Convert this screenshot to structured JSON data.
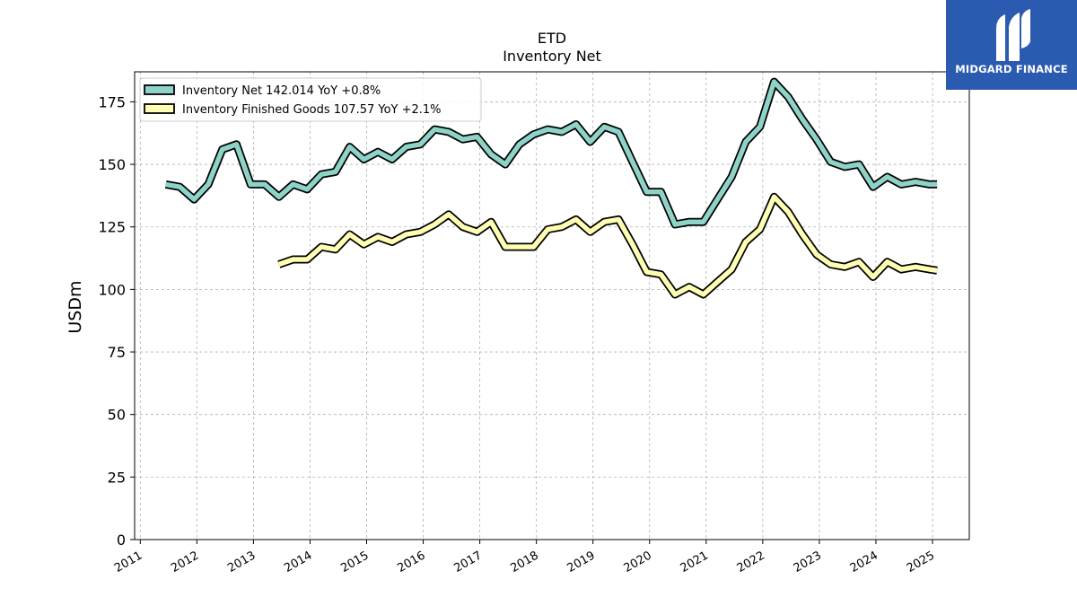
{
  "chart_data": {
    "type": "line",
    "title": "ETD",
    "subtitle": "Inventory Net",
    "ylabel": "USDm",
    "ylim": [
      0,
      187
    ],
    "yticks": [
      0,
      25,
      50,
      75,
      100,
      125,
      150,
      175
    ],
    "xlim": [
      2010.9,
      2025.65
    ],
    "xticks": [
      2011,
      2012,
      2013,
      2014,
      2015,
      2016,
      2017,
      2018,
      2019,
      2020,
      2021,
      2022,
      2023,
      2024,
      2025
    ],
    "xtick_labels": [
      "2011",
      "2012",
      "2013",
      "2014",
      "2015",
      "2016",
      "2017",
      "2018",
      "2019",
      "2020",
      "2021",
      "2022",
      "2023",
      "2024",
      "2025"
    ],
    "grid": true,
    "legend_position": "top-left",
    "series": [
      {
        "name": "Inventory Net  142.014 YoY +0.8%",
        "color": "#8dd3c7",
        "x": [
          2011.45,
          2011.7,
          2011.95,
          2012.2,
          2012.45,
          2012.7,
          2012.95,
          2013.2,
          2013.45,
          2013.7,
          2013.95,
          2014.2,
          2014.45,
          2014.7,
          2014.95,
          2015.2,
          2015.45,
          2015.7,
          2015.95,
          2016.2,
          2016.45,
          2016.7,
          2016.95,
          2017.2,
          2017.45,
          2017.7,
          2017.95,
          2018.2,
          2018.45,
          2018.7,
          2018.95,
          2019.2,
          2019.45,
          2019.7,
          2019.95,
          2020.2,
          2020.45,
          2020.7,
          2020.95,
          2021.2,
          2021.45,
          2021.7,
          2021.95,
          2022.2,
          2022.45,
          2022.7,
          2022.95,
          2023.2,
          2023.45,
          2023.7,
          2023.95,
          2024.2,
          2024.45,
          2024.7,
          2024.95,
          2025.08
        ],
        "values": [
          142,
          141,
          136,
          142,
          156,
          158,
          142,
          142,
          137,
          142,
          140,
          146,
          147,
          157,
          152,
          155,
          152,
          157,
          158,
          164,
          163,
          160,
          161,
          154,
          150,
          158,
          162,
          164,
          163,
          166,
          159,
          165,
          163,
          151,
          139,
          139,
          126,
          127,
          127,
          136,
          145,
          159,
          165,
          183,
          177,
          168,
          160,
          151,
          149,
          150,
          141,
          145,
          142,
          143,
          142,
          142.014
        ]
      },
      {
        "name": "Inventory Finished Goods  107.57 YoY +2.1%",
        "color": "#ffffb3",
        "x": [
          2013.45,
          2013.7,
          2013.95,
          2014.2,
          2014.45,
          2014.7,
          2014.95,
          2015.2,
          2015.45,
          2015.7,
          2015.95,
          2016.2,
          2016.45,
          2016.7,
          2016.95,
          2017.2,
          2017.45,
          2017.7,
          2017.95,
          2018.2,
          2018.45,
          2018.7,
          2018.95,
          2019.2,
          2019.45,
          2019.7,
          2019.95,
          2020.2,
          2020.45,
          2020.7,
          2020.95,
          2021.2,
          2021.45,
          2021.7,
          2021.95,
          2022.2,
          2022.45,
          2022.7,
          2022.95,
          2023.2,
          2023.45,
          2023.7,
          2023.95,
          2024.2,
          2024.45,
          2024.7,
          2024.95,
          2025.08
        ],
        "values": [
          110,
          112,
          112,
          117,
          116,
          122,
          118,
          121,
          119,
          122,
          123,
          126,
          130,
          125,
          123,
          127,
          117,
          117,
          117,
          124,
          125,
          128,
          123,
          127,
          128,
          118,
          107,
          106,
          98,
          101,
          98,
          103,
          108,
          119,
          124,
          137,
          131,
          122,
          114,
          110,
          109,
          111,
          105,
          111,
          108,
          109,
          108,
          107.57
        ]
      }
    ]
  },
  "logo": {
    "text": "MIDGARD FINANCE"
  },
  "colors": {
    "logo_bg": "#2a5bb0",
    "grid": "#b0b0b0",
    "line_outline": "#000000"
  }
}
